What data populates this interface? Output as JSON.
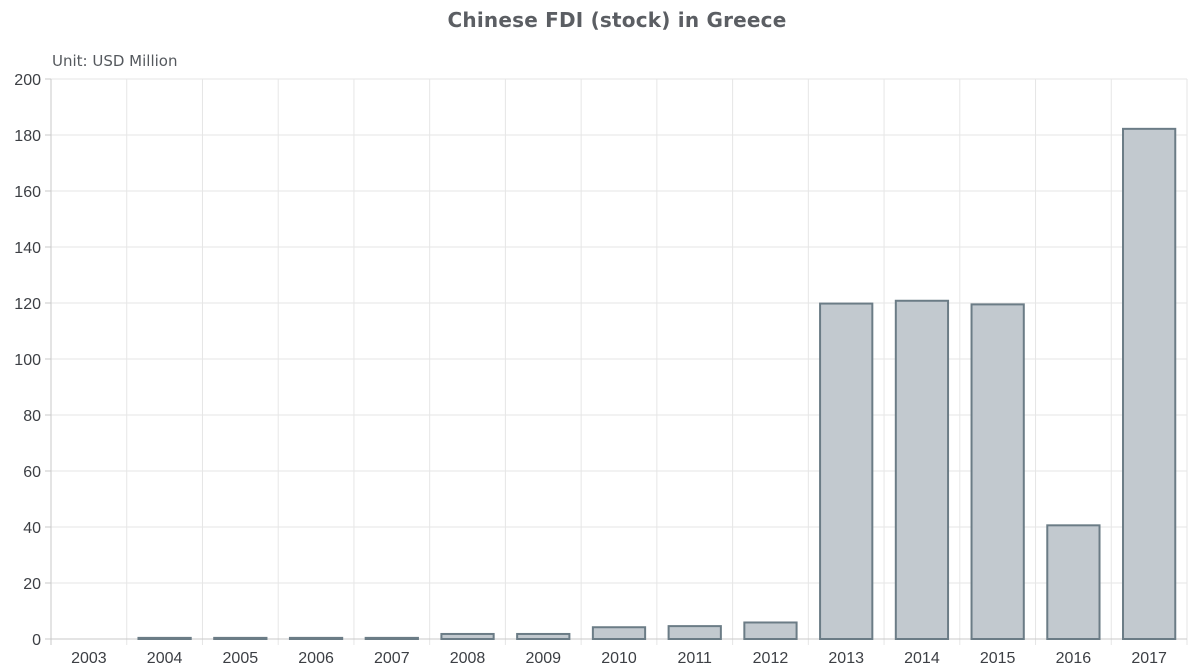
{
  "chart_data": {
    "type": "bar",
    "title": "Chinese FDI (stock) in Greece",
    "unit_label": "Unit: USD Million",
    "xlabel": "",
    "ylabel": "",
    "categories": [
      "2003",
      "2004",
      "2005",
      "2006",
      "2007",
      "2008",
      "2009",
      "2010",
      "2011",
      "2012",
      "2013",
      "2014",
      "2015",
      "2016",
      "2017"
    ],
    "values": [
      0,
      0.4,
      0.4,
      0.4,
      0.4,
      1.8,
      1.8,
      4.2,
      4.6,
      5.9,
      119.8,
      120.8,
      119.5,
      40.6,
      182.2
    ],
    "ylim": [
      0,
      200
    ],
    "yticks": [
      0,
      20,
      40,
      60,
      80,
      100,
      120,
      140,
      160,
      180,
      200
    ],
    "grid": true,
    "legend": "none",
    "colors": {
      "bar_fill": "#c2c9cf",
      "bar_stroke": "#6b7c86"
    }
  }
}
